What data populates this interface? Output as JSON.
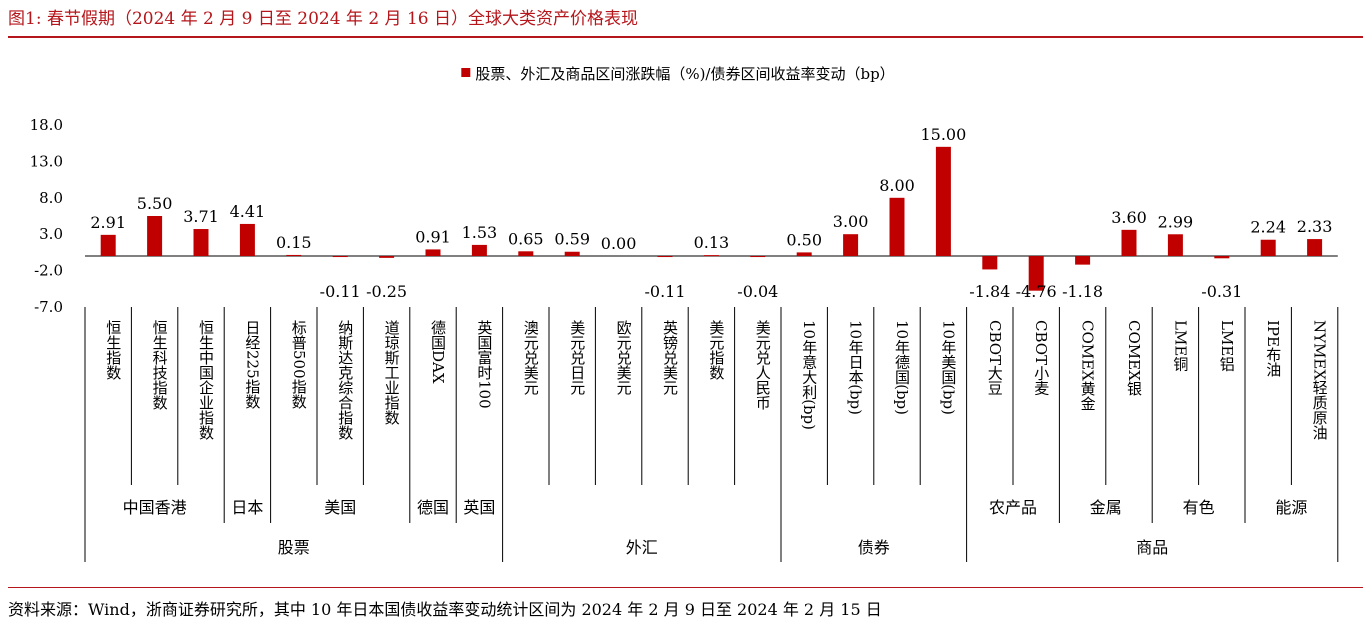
{
  "figure": {
    "title": "图1:  春节假期（2024 年 2 月 9 日至 2024 年 2 月 16 日）全球大类资产价格表现",
    "source": "资料来源：Wind，浙商证券研究所，其中 10 年日本国债收益率变动统计区间为 2024 年 2 月 9 日至 2024 年 2 月 15 日"
  },
  "chart_data": {
    "type": "bar",
    "legend": "股票、外汇及商品区间涨跌幅（%)/债券区间收益率变动（bp）",
    "legend_position": "top-center",
    "bar_color": "#c00000",
    "ylim": [
      -7.0,
      18.0
    ],
    "yticks": [
      "18.0",
      "13.0",
      "8.0",
      "3.0",
      "-2.0",
      "-7.0"
    ],
    "grid": false,
    "categories": [
      "恒生指数",
      "恒生科技指数",
      "恒生中国企业指数",
      "日经225指数",
      "标普500指数",
      "纳斯达克综合指数",
      "道琼斯工业指数",
      "德国DAX",
      "英国富时100",
      "澳元兑美元",
      "美元兑日元",
      "欧元兑美元",
      "英镑兑美元",
      "美元指数",
      "美元兑人民币",
      "10年意大利(bp)",
      "10年日本(bp)",
      "10年德国(bp)",
      "10年美国(bp)",
      "CBOT大豆",
      "CBOT小麦",
      "COMEX黄金",
      "COMEX银",
      "LME铜",
      "LME铝",
      "IPE布油",
      "NYMEX轻质原油"
    ],
    "values": [
      2.91,
      5.5,
      3.71,
      4.41,
      0.15,
      -0.11,
      -0.25,
      0.91,
      1.53,
      0.65,
      0.59,
      0.0,
      -0.11,
      0.13,
      -0.04,
      0.5,
      3.0,
      8.0,
      15.0,
      -1.84,
      -4.76,
      -1.18,
      3.6,
      2.99,
      -0.31,
      2.24,
      2.33
    ],
    "value_labels": [
      "2.91",
      "5.50",
      "3.71",
      "4.41",
      "0.15",
      "-0.11",
      "-0.25",
      "0.91",
      "1.53",
      "0.65",
      "0.59",
      "0.00",
      "-0.11",
      "0.13",
      "-0.04",
      "0.50",
      "3.00",
      "8.00",
      "15.00",
      "-1.84",
      "-4.76",
      "-1.18",
      "3.60",
      "2.99",
      "-0.31",
      "2.24",
      "2.33"
    ],
    "group_level1": [
      {
        "label": "中国香港",
        "count": 3
      },
      {
        "label": "日本",
        "count": 1
      },
      {
        "label": "美国",
        "count": 3
      },
      {
        "label": "德国",
        "count": 1
      },
      {
        "label": "英国",
        "count": 1
      },
      {
        "label": "",
        "count": 6
      },
      {
        "label": "",
        "count": 4
      },
      {
        "label": "农产品",
        "count": 2
      },
      {
        "label": "金属",
        "count": 2
      },
      {
        "label": "有色",
        "count": 2
      },
      {
        "label": "能源",
        "count": 2
      }
    ],
    "group_level2": [
      {
        "label": "股票",
        "count": 9
      },
      {
        "label": "外汇",
        "count": 6
      },
      {
        "label": "债券",
        "count": 4
      },
      {
        "label": "商品",
        "count": 8
      }
    ]
  }
}
